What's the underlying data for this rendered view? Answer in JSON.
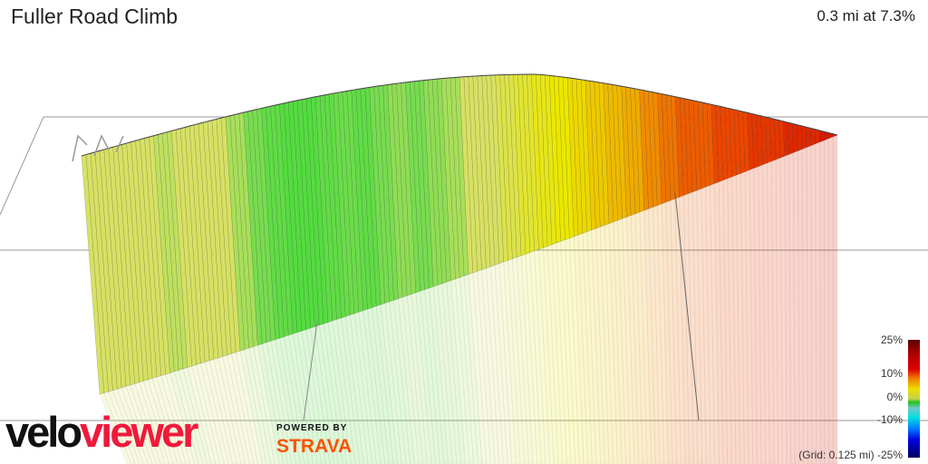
{
  "header": {
    "title": "Fuller Road Climb",
    "summary": "0.3 mi at 7.3%"
  },
  "legend": {
    "labels": [
      "25%",
      "10%",
      "0%",
      "-10%"
    ],
    "grid_note": "(Grid: 0.125 mi) -25%"
  },
  "branding": {
    "logo_part1": "velo",
    "logo_part2": "viewer",
    "powered_by": "POWERED BY",
    "strava": "STRAVA"
  },
  "profile": {
    "segment_grades_pct": [
      5,
      5,
      5,
      5,
      4.5,
      5,
      5,
      5,
      4,
      3,
      2,
      1.5,
      1.5,
      2,
      2.5,
      2,
      3,
      3.5,
      3,
      3.5,
      4,
      5,
      5,
      5.5,
      6,
      6.5,
      7,
      7.5,
      8,
      8.5,
      9,
      10,
      11,
      12,
      12,
      13,
      13,
      14,
      14,
      15,
      15,
      16
    ],
    "colors": {
      "green": "#33dd33",
      "yellow": "#e8e800",
      "orange": "#f08000",
      "red": "#dd1100"
    }
  }
}
